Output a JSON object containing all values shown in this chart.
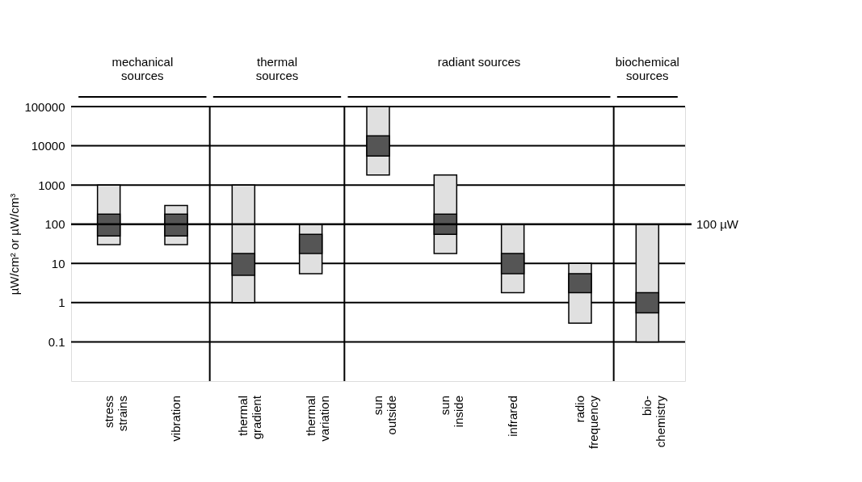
{
  "chart_data": {
    "type": "bar",
    "categories": [
      "stress\nstrains",
      "vibration",
      "thermal\ngradient",
      "thermal\nvariation",
      "sun\noutside",
      "sun\ninside",
      "infrared",
      "radio\nfrequency",
      "bio-\nchemistry"
    ],
    "series": [
      {
        "color": "#e0e0e0",
        "base": [
          30,
          30,
          1,
          5.5,
          1800,
          18,
          1.8,
          0.3,
          0.1
        ],
        "values": [
          970,
          270,
          999,
          94.5,
          98200,
          1782,
          98.2,
          9.7,
          99.9
        ]
      },
      {
        "color": "#555555",
        "base": [
          50,
          50,
          5,
          18,
          5500,
          55,
          5.5,
          1.8,
          0.55
        ],
        "values": [
          130,
          130,
          13,
          37,
          12500,
          125,
          12.5,
          3.7,
          1.25
        ]
      }
    ],
    "ylabel": "µW/cm² or µW/cm³",
    "log": "y",
    "ylim": [
      0.01,
      100000
    ],
    "yticks": [
      0.1,
      1,
      10,
      100,
      1000,
      10000,
      {
        "value": 100000,
        "label": "100000"
      }
    ],
    "grid": "y",
    "ref_lines": [
      {
        "axis": "y",
        "value": 100,
        "label": "100 µW"
      }
    ],
    "annotations": [
      "mechanical\nsources",
      "thermal\nsources",
      "radiant sources",
      "biochemical\nsources"
    ]
  }
}
